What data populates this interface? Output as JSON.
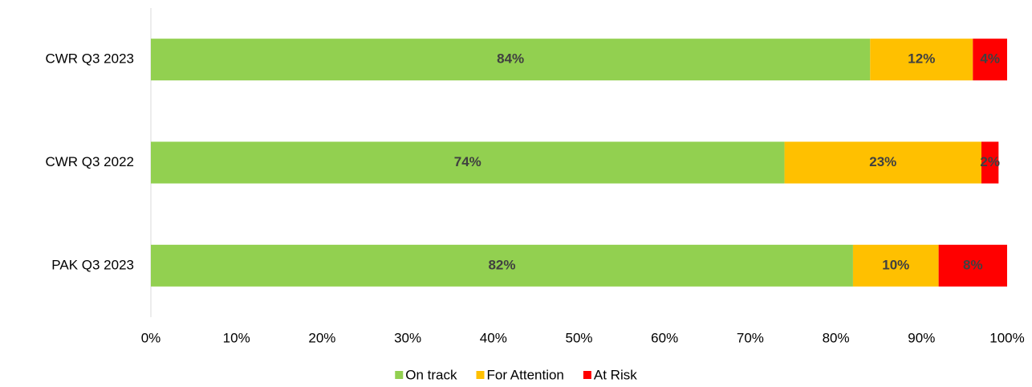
{
  "chart_data": {
    "type": "stacked_bar_horizontal",
    "categories": [
      "CWR Q3 2023",
      "CWR Q3 2022",
      "PAK Q3 2023"
    ],
    "series": [
      {
        "name": "On track",
        "color": "#92d050",
        "values": [
          84,
          74,
          82
        ],
        "value_labels": [
          "84%",
          "74%",
          "82%"
        ]
      },
      {
        "name": "For Attention",
        "color": "#ffc000",
        "values": [
          12,
          23,
          10
        ],
        "value_labels": [
          "12%",
          "23%",
          "10%"
        ]
      },
      {
        "name": "At Risk",
        "color": "#ff0000",
        "values": [
          4,
          2,
          8
        ],
        "value_labels": [
          "4%",
          "2%",
          "8%"
        ]
      }
    ],
    "xlim": [
      0,
      100
    ],
    "xticks": [
      {
        "value": 0,
        "label": "0%"
      },
      {
        "value": 10,
        "label": "10%"
      },
      {
        "value": 20,
        "label": "20%"
      },
      {
        "value": 30,
        "label": "30%"
      },
      {
        "value": 40,
        "label": "40%"
      },
      {
        "value": 50,
        "label": "50%"
      },
      {
        "value": 60,
        "label": "60%"
      },
      {
        "value": 70,
        "label": "70%"
      },
      {
        "value": 80,
        "label": "80%"
      },
      {
        "value": 90,
        "label": "90%"
      },
      {
        "value": 100,
        "label": "100%"
      }
    ],
    "legend": "bottom"
  }
}
